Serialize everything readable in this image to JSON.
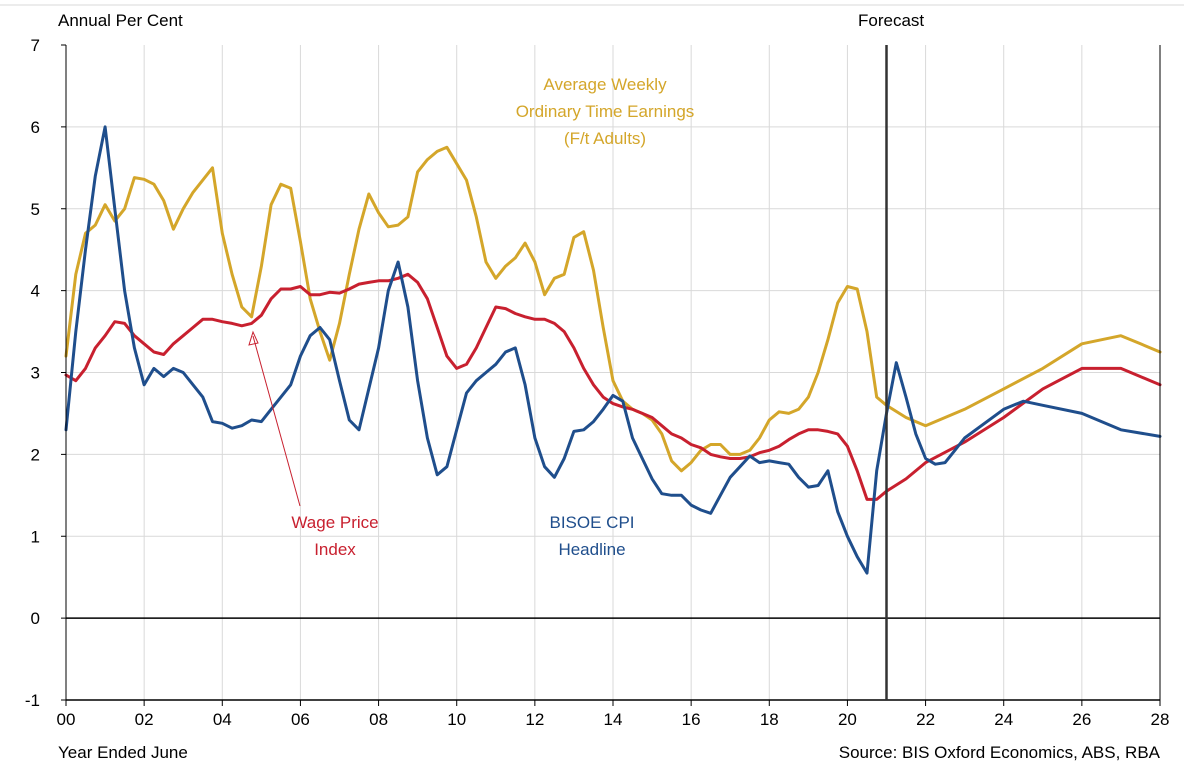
{
  "colors": {
    "background": "#ffffff",
    "grid": "#d9d9d9",
    "axis": "#000000",
    "cpi": "#1f4e8c",
    "wpi": "#c8202f",
    "awote": "#d4a62a"
  },
  "chart_data": {
    "type": "line",
    "ylabel": "Annual Per Cent",
    "xlabel": "Year Ended June",
    "source": "Source: BIS Oxford Economics, ABS, RBA",
    "forecast_label": "Forecast",
    "forecast_start": 2021,
    "xlim": [
      2000,
      2028
    ],
    "ylim": [
      -1,
      7
    ],
    "xticks": [
      2000,
      2002,
      2004,
      2006,
      2008,
      2010,
      2012,
      2014,
      2016,
      2018,
      2020,
      2022,
      2024,
      2026,
      2028
    ],
    "xtick_labels": [
      "00",
      "02",
      "04",
      "06",
      "08",
      "10",
      "12",
      "14",
      "16",
      "18",
      "20",
      "22",
      "24",
      "26",
      "28"
    ],
    "yticks": [
      -1,
      0,
      1,
      2,
      3,
      4,
      5,
      6,
      7
    ],
    "ytick_labels": [
      "-1",
      "0",
      "1",
      "2",
      "3",
      "4",
      "5",
      "6",
      "7"
    ],
    "grid": true,
    "annotations": {
      "awote": [
        "Average Weekly",
        "Ordinary Time Earnings",
        "(F/t Adults)"
      ],
      "wpi": [
        "Wage Price",
        "Index"
      ],
      "cpi": [
        "BISOE CPI",
        "Headline"
      ]
    },
    "series": [
      {
        "id": "awote",
        "name": "Average Weekly Ordinary Time Earnings (F/t Adults)",
        "color": "#d4a62a",
        "points": [
          [
            2000.0,
            3.2
          ],
          [
            2000.25,
            4.2
          ],
          [
            2000.5,
            4.7
          ],
          [
            2000.75,
            4.8
          ],
          [
            2001.0,
            5.05
          ],
          [
            2001.25,
            4.85
          ],
          [
            2001.5,
            5.0
          ],
          [
            2001.75,
            5.38
          ],
          [
            2002.0,
            5.36
          ],
          [
            2002.25,
            5.3
          ],
          [
            2002.5,
            5.1
          ],
          [
            2002.75,
            4.75
          ],
          [
            2003.0,
            5.0
          ],
          [
            2003.25,
            5.2
          ],
          [
            2003.5,
            5.35
          ],
          [
            2003.75,
            5.5
          ],
          [
            2004.0,
            4.7
          ],
          [
            2004.25,
            4.2
          ],
          [
            2004.5,
            3.8
          ],
          [
            2004.75,
            3.68
          ],
          [
            2005.0,
            4.3
          ],
          [
            2005.25,
            5.05
          ],
          [
            2005.5,
            5.3
          ],
          [
            2005.75,
            5.25
          ],
          [
            2006.0,
            4.6
          ],
          [
            2006.25,
            3.9
          ],
          [
            2006.5,
            3.5
          ],
          [
            2006.75,
            3.15
          ],
          [
            2007.0,
            3.6
          ],
          [
            2007.25,
            4.2
          ],
          [
            2007.5,
            4.75
          ],
          [
            2007.75,
            5.18
          ],
          [
            2008.0,
            4.95
          ],
          [
            2008.25,
            4.78
          ],
          [
            2008.5,
            4.8
          ],
          [
            2008.75,
            4.9
          ],
          [
            2009.0,
            5.45
          ],
          [
            2009.25,
            5.6
          ],
          [
            2009.5,
            5.7
          ],
          [
            2009.75,
            5.75
          ],
          [
            2010.0,
            5.55
          ],
          [
            2010.25,
            5.35
          ],
          [
            2010.5,
            4.9
          ],
          [
            2010.75,
            4.35
          ],
          [
            2011.0,
            4.15
          ],
          [
            2011.25,
            4.3
          ],
          [
            2011.5,
            4.4
          ],
          [
            2011.75,
            4.58
          ],
          [
            2012.0,
            4.35
          ],
          [
            2012.25,
            3.95
          ],
          [
            2012.5,
            4.15
          ],
          [
            2012.75,
            4.2
          ],
          [
            2013.0,
            4.65
          ],
          [
            2013.25,
            4.72
          ],
          [
            2013.5,
            4.25
          ],
          [
            2013.75,
            3.55
          ],
          [
            2014.0,
            2.9
          ],
          [
            2014.25,
            2.65
          ],
          [
            2014.5,
            2.55
          ],
          [
            2014.75,
            2.5
          ],
          [
            2015.0,
            2.42
          ],
          [
            2015.25,
            2.25
          ],
          [
            2015.5,
            1.92
          ],
          [
            2015.75,
            1.8
          ],
          [
            2016.0,
            1.9
          ],
          [
            2016.25,
            2.05
          ],
          [
            2016.5,
            2.12
          ],
          [
            2016.75,
            2.12
          ],
          [
            2017.0,
            2.0
          ],
          [
            2017.25,
            2.0
          ],
          [
            2017.5,
            2.05
          ],
          [
            2017.75,
            2.2
          ],
          [
            2018.0,
            2.42
          ],
          [
            2018.25,
            2.52
          ],
          [
            2018.5,
            2.5
          ],
          [
            2018.75,
            2.55
          ],
          [
            2019.0,
            2.7
          ],
          [
            2019.25,
            3.0
          ],
          [
            2019.5,
            3.4
          ],
          [
            2019.75,
            3.85
          ],
          [
            2020.0,
            4.05
          ],
          [
            2020.25,
            4.02
          ],
          [
            2020.5,
            3.5
          ],
          [
            2020.75,
            2.7
          ],
          [
            2021.0,
            2.6
          ],
          [
            2021.5,
            2.45
          ],
          [
            2022.0,
            2.35
          ],
          [
            2023.0,
            2.55
          ],
          [
            2024.0,
            2.8
          ],
          [
            2025.0,
            3.05
          ],
          [
            2026.0,
            3.35
          ],
          [
            2027.0,
            3.45
          ],
          [
            2027.5,
            3.35
          ],
          [
            2028.0,
            3.25
          ]
        ]
      },
      {
        "id": "wpi",
        "name": "Wage Price Index",
        "color": "#c8202f",
        "points": [
          [
            2000.0,
            2.97
          ],
          [
            2000.25,
            2.9
          ],
          [
            2000.5,
            3.05
          ],
          [
            2000.75,
            3.3
          ],
          [
            2001.0,
            3.45
          ],
          [
            2001.25,
            3.62
          ],
          [
            2001.5,
            3.6
          ],
          [
            2001.75,
            3.45
          ],
          [
            2002.0,
            3.35
          ],
          [
            2002.25,
            3.25
          ],
          [
            2002.5,
            3.22
          ],
          [
            2002.75,
            3.35
          ],
          [
            2003.0,
            3.45
          ],
          [
            2003.25,
            3.55
          ],
          [
            2003.5,
            3.65
          ],
          [
            2003.75,
            3.65
          ],
          [
            2004.0,
            3.62
          ],
          [
            2004.25,
            3.6
          ],
          [
            2004.5,
            3.57
          ],
          [
            2004.75,
            3.6
          ],
          [
            2005.0,
            3.7
          ],
          [
            2005.25,
            3.9
          ],
          [
            2005.5,
            4.02
          ],
          [
            2005.75,
            4.02
          ],
          [
            2006.0,
            4.05
          ],
          [
            2006.25,
            3.95
          ],
          [
            2006.5,
            3.95
          ],
          [
            2006.75,
            3.98
          ],
          [
            2007.0,
            3.97
          ],
          [
            2007.25,
            4.02
          ],
          [
            2007.5,
            4.08
          ],
          [
            2007.75,
            4.1
          ],
          [
            2008.0,
            4.12
          ],
          [
            2008.25,
            4.12
          ],
          [
            2008.5,
            4.15
          ],
          [
            2008.75,
            4.2
          ],
          [
            2009.0,
            4.1
          ],
          [
            2009.25,
            3.9
          ],
          [
            2009.5,
            3.55
          ],
          [
            2009.75,
            3.2
          ],
          [
            2010.0,
            3.05
          ],
          [
            2010.25,
            3.1
          ],
          [
            2010.5,
            3.3
          ],
          [
            2010.75,
            3.55
          ],
          [
            2011.0,
            3.8
          ],
          [
            2011.25,
            3.78
          ],
          [
            2011.5,
            3.72
          ],
          [
            2011.75,
            3.68
          ],
          [
            2012.0,
            3.65
          ],
          [
            2012.25,
            3.65
          ],
          [
            2012.5,
            3.6
          ],
          [
            2012.75,
            3.5
          ],
          [
            2013.0,
            3.3
          ],
          [
            2013.25,
            3.05
          ],
          [
            2013.5,
            2.85
          ],
          [
            2013.75,
            2.7
          ],
          [
            2014.0,
            2.62
          ],
          [
            2014.25,
            2.58
          ],
          [
            2014.5,
            2.55
          ],
          [
            2014.75,
            2.5
          ],
          [
            2015.0,
            2.45
          ],
          [
            2015.25,
            2.35
          ],
          [
            2015.5,
            2.25
          ],
          [
            2015.75,
            2.2
          ],
          [
            2016.0,
            2.12
          ],
          [
            2016.25,
            2.08
          ],
          [
            2016.5,
            2.0
          ],
          [
            2016.75,
            1.97
          ],
          [
            2017.0,
            1.95
          ],
          [
            2017.25,
            1.95
          ],
          [
            2017.5,
            1.97
          ],
          [
            2017.75,
            2.02
          ],
          [
            2018.0,
            2.05
          ],
          [
            2018.25,
            2.1
          ],
          [
            2018.5,
            2.18
          ],
          [
            2018.75,
            2.25
          ],
          [
            2019.0,
            2.3
          ],
          [
            2019.25,
            2.3
          ],
          [
            2019.5,
            2.28
          ],
          [
            2019.75,
            2.25
          ],
          [
            2020.0,
            2.1
          ],
          [
            2020.25,
            1.8
          ],
          [
            2020.5,
            1.45
          ],
          [
            2020.75,
            1.45
          ],
          [
            2021.0,
            1.55
          ],
          [
            2021.5,
            1.7
          ],
          [
            2022.0,
            1.9
          ],
          [
            2023.0,
            2.15
          ],
          [
            2024.0,
            2.45
          ],
          [
            2025.0,
            2.8
          ],
          [
            2026.0,
            3.05
          ],
          [
            2027.0,
            3.05
          ],
          [
            2027.5,
            2.95
          ],
          [
            2028.0,
            2.85
          ]
        ]
      },
      {
        "id": "cpi",
        "name": "BISOE CPI Headline",
        "color": "#1f4e8c",
        "points": [
          [
            2000.0,
            2.3
          ],
          [
            2000.25,
            3.5
          ],
          [
            2000.5,
            4.5
          ],
          [
            2000.75,
            5.4
          ],
          [
            2001.0,
            6.0
          ],
          [
            2001.25,
            5.0
          ],
          [
            2001.5,
            4.0
          ],
          [
            2001.75,
            3.3
          ],
          [
            2002.0,
            2.85
          ],
          [
            2002.25,
            3.05
          ],
          [
            2002.5,
            2.95
          ],
          [
            2002.75,
            3.05
          ],
          [
            2003.0,
            3.0
          ],
          [
            2003.25,
            2.85
          ],
          [
            2003.5,
            2.7
          ],
          [
            2003.75,
            2.4
          ],
          [
            2004.0,
            2.38
          ],
          [
            2004.25,
            2.32
          ],
          [
            2004.5,
            2.35
          ],
          [
            2004.75,
            2.42
          ],
          [
            2005.0,
            2.4
          ],
          [
            2005.25,
            2.55
          ],
          [
            2005.5,
            2.7
          ],
          [
            2005.75,
            2.85
          ],
          [
            2006.0,
            3.2
          ],
          [
            2006.25,
            3.45
          ],
          [
            2006.5,
            3.55
          ],
          [
            2006.75,
            3.4
          ],
          [
            2007.0,
            2.9
          ],
          [
            2007.25,
            2.42
          ],
          [
            2007.5,
            2.3
          ],
          [
            2007.75,
            2.8
          ],
          [
            2008.0,
            3.3
          ],
          [
            2008.25,
            4.0
          ],
          [
            2008.5,
            4.35
          ],
          [
            2008.75,
            3.8
          ],
          [
            2009.0,
            2.9
          ],
          [
            2009.25,
            2.2
          ],
          [
            2009.5,
            1.75
          ],
          [
            2009.75,
            1.85
          ],
          [
            2010.0,
            2.3
          ],
          [
            2010.25,
            2.75
          ],
          [
            2010.5,
            2.9
          ],
          [
            2010.75,
            3.0
          ],
          [
            2011.0,
            3.1
          ],
          [
            2011.25,
            3.25
          ],
          [
            2011.5,
            3.3
          ],
          [
            2011.75,
            2.85
          ],
          [
            2012.0,
            2.2
          ],
          [
            2012.25,
            1.85
          ],
          [
            2012.5,
            1.72
          ],
          [
            2012.75,
            1.95
          ],
          [
            2013.0,
            2.28
          ],
          [
            2013.25,
            2.3
          ],
          [
            2013.5,
            2.4
          ],
          [
            2013.75,
            2.55
          ],
          [
            2014.0,
            2.72
          ],
          [
            2014.25,
            2.65
          ],
          [
            2014.5,
            2.2
          ],
          [
            2014.75,
            1.95
          ],
          [
            2015.0,
            1.7
          ],
          [
            2015.25,
            1.52
          ],
          [
            2015.5,
            1.5
          ],
          [
            2015.75,
            1.5
          ],
          [
            2016.0,
            1.38
          ],
          [
            2016.25,
            1.32
          ],
          [
            2016.5,
            1.28
          ],
          [
            2016.75,
            1.5
          ],
          [
            2017.0,
            1.72
          ],
          [
            2017.25,
            1.85
          ],
          [
            2017.5,
            1.98
          ],
          [
            2017.75,
            1.9
          ],
          [
            2018.0,
            1.92
          ],
          [
            2018.25,
            1.9
          ],
          [
            2018.5,
            1.88
          ],
          [
            2018.75,
            1.72
          ],
          [
            2019.0,
            1.6
          ],
          [
            2019.25,
            1.62
          ],
          [
            2019.5,
            1.8
          ],
          [
            2019.75,
            1.3
          ],
          [
            2020.0,
            1.0
          ],
          [
            2020.25,
            0.75
          ],
          [
            2020.5,
            0.55
          ],
          [
            2020.75,
            1.8
          ],
          [
            2021.0,
            2.5
          ],
          [
            2021.25,
            3.12
          ],
          [
            2021.5,
            2.7
          ],
          [
            2021.75,
            2.25
          ],
          [
            2022.0,
            1.95
          ],
          [
            2022.25,
            1.88
          ],
          [
            2022.5,
            1.9
          ],
          [
            2022.75,
            2.05
          ],
          [
            2023.0,
            2.2
          ],
          [
            2024.0,
            2.55
          ],
          [
            2024.5,
            2.65
          ],
          [
            2025.0,
            2.6
          ],
          [
            2026.0,
            2.5
          ],
          [
            2027.0,
            2.3
          ],
          [
            2028.0,
            2.22
          ]
        ]
      }
    ]
  }
}
